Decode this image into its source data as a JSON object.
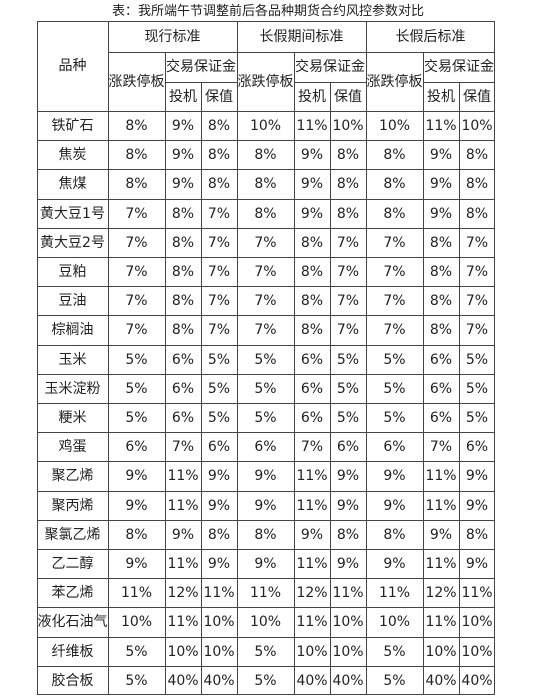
{
  "title": "表：我所端午节调整前后各品种期货合约风控参数对比",
  "header": {
    "variety": "品种",
    "groups": [
      "现行标准",
      "长假期间标准",
      "长假后标准"
    ],
    "limit": "涨跌停板",
    "margin": "交易保证金",
    "spec": "投机",
    "hedge": "保值"
  },
  "rows": [
    {
      "name": "铁矿石",
      "vals": [
        "8%",
        "9%",
        "8%",
        "10%",
        "11%",
        "10%",
        "10%",
        "11%",
        "10%"
      ]
    },
    {
      "name": "焦炭",
      "vals": [
        "8%",
        "9%",
        "8%",
        "8%",
        "9%",
        "8%",
        "8%",
        "9%",
        "8%"
      ]
    },
    {
      "name": "焦煤",
      "vals": [
        "8%",
        "9%",
        "8%",
        "8%",
        "9%",
        "8%",
        "8%",
        "9%",
        "8%"
      ]
    },
    {
      "name": "黄大豆1号",
      "vals": [
        "7%",
        "8%",
        "7%",
        "8%",
        "9%",
        "8%",
        "8%",
        "9%",
        "8%"
      ]
    },
    {
      "name": "黄大豆2号",
      "vals": [
        "7%",
        "8%",
        "7%",
        "7%",
        "8%",
        "7%",
        "7%",
        "8%",
        "7%"
      ]
    },
    {
      "name": "豆粕",
      "vals": [
        "7%",
        "8%",
        "7%",
        "7%",
        "8%",
        "7%",
        "7%",
        "8%",
        "7%"
      ]
    },
    {
      "name": "豆油",
      "vals": [
        "7%",
        "8%",
        "7%",
        "7%",
        "8%",
        "7%",
        "7%",
        "8%",
        "7%"
      ]
    },
    {
      "name": "棕榈油",
      "vals": [
        "7%",
        "8%",
        "7%",
        "7%",
        "8%",
        "7%",
        "7%",
        "8%",
        "7%"
      ]
    },
    {
      "name": "玉米",
      "vals": [
        "5%",
        "6%",
        "5%",
        "5%",
        "6%",
        "5%",
        "5%",
        "6%",
        "5%"
      ]
    },
    {
      "name": "玉米淀粉",
      "vals": [
        "5%",
        "6%",
        "5%",
        "5%",
        "6%",
        "5%",
        "5%",
        "6%",
        "5%"
      ]
    },
    {
      "name": "粳米",
      "vals": [
        "5%",
        "6%",
        "5%",
        "5%",
        "6%",
        "5%",
        "5%",
        "6%",
        "5%"
      ]
    },
    {
      "name": "鸡蛋",
      "vals": [
        "6%",
        "7%",
        "6%",
        "6%",
        "7%",
        "6%",
        "6%",
        "7%",
        "6%"
      ]
    },
    {
      "name": "聚乙烯",
      "vals": [
        "9%",
        "11%",
        "9%",
        "9%",
        "11%",
        "9%",
        "9%",
        "11%",
        "9%"
      ]
    },
    {
      "name": "聚丙烯",
      "vals": [
        "9%",
        "11%",
        "9%",
        "9%",
        "11%",
        "9%",
        "9%",
        "11%",
        "9%"
      ]
    },
    {
      "name": "聚氯乙烯",
      "vals": [
        "8%",
        "9%",
        "8%",
        "8%",
        "9%",
        "8%",
        "8%",
        "9%",
        "8%"
      ]
    },
    {
      "name": "乙二醇",
      "vals": [
        "9%",
        "11%",
        "9%",
        "9%",
        "11%",
        "9%",
        "9%",
        "11%",
        "9%"
      ]
    },
    {
      "name": "苯乙烯",
      "vals": [
        "11%",
        "12%",
        "11%",
        "11%",
        "12%",
        "11%",
        "11%",
        "12%",
        "11%"
      ]
    },
    {
      "name": "液化石油气",
      "vals": [
        "10%",
        "11%",
        "10%",
        "10%",
        "11%",
        "10%",
        "10%",
        "11%",
        "10%"
      ]
    },
    {
      "name": "纤维板",
      "vals": [
        "5%",
        "10%",
        "10%",
        "5%",
        "10%",
        "10%",
        "5%",
        "10%",
        "10%"
      ]
    },
    {
      "name": "胶合板",
      "vals": [
        "5%",
        "40%",
        "40%",
        "5%",
        "40%",
        "40%",
        "5%",
        "40%",
        "40%"
      ]
    }
  ]
}
